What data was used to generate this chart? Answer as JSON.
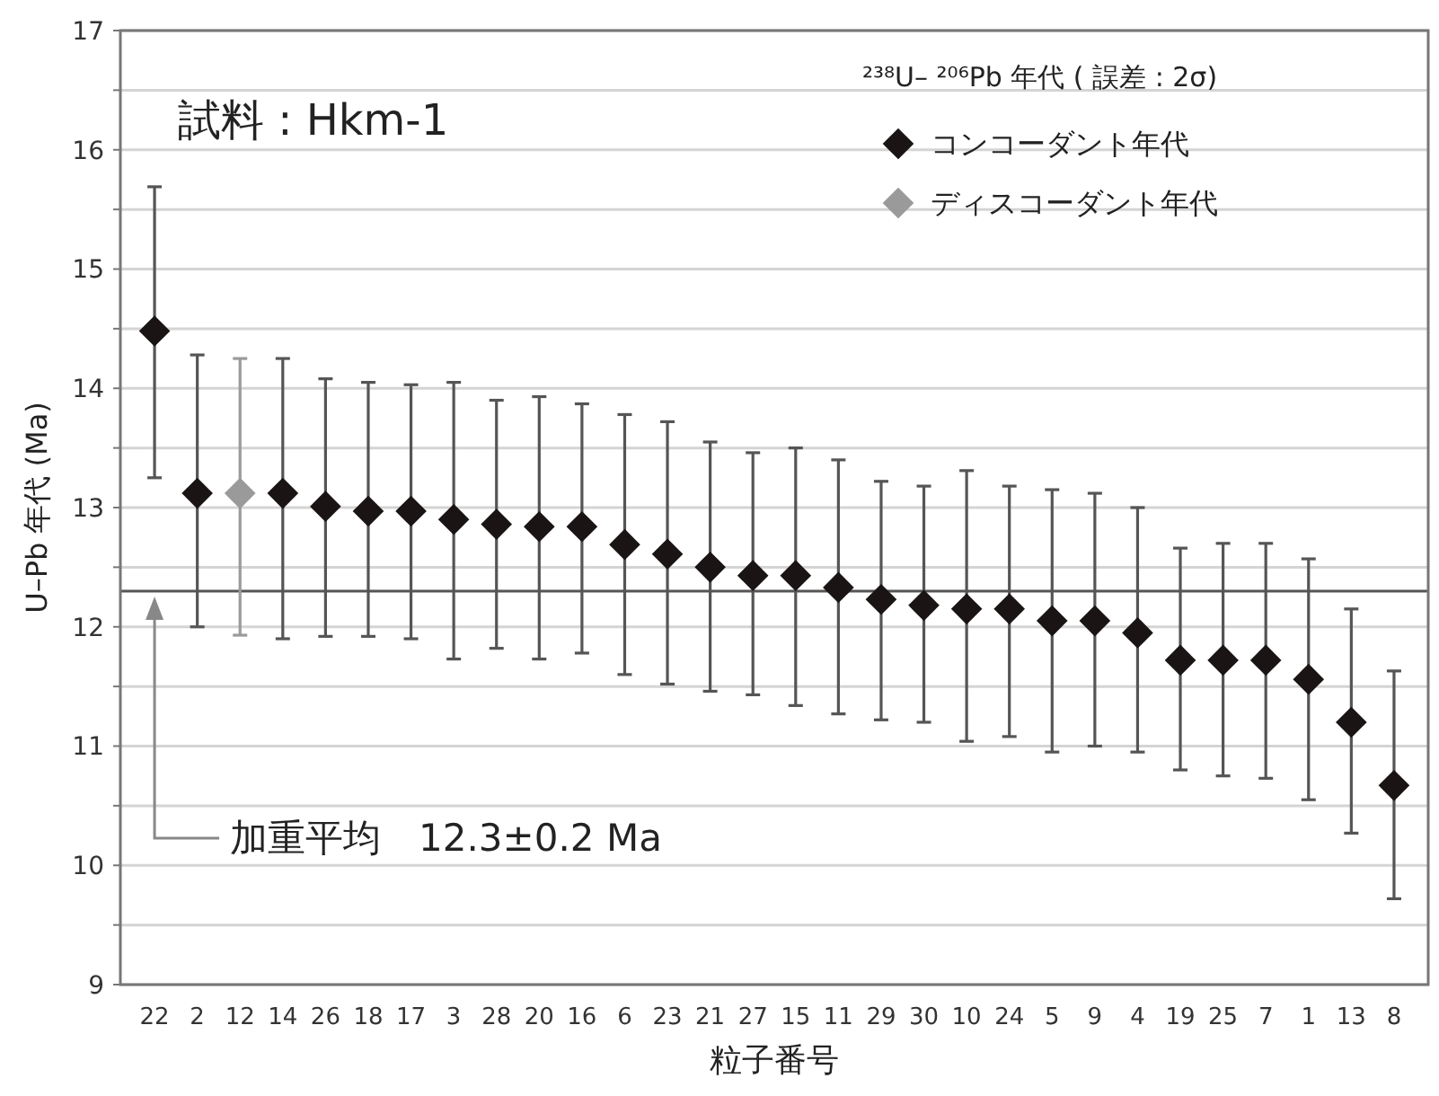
{
  "chart_data": {
    "type": "scatter",
    "xlabel": "粒子番号",
    "ylabel": "U–Pb 年代 (Ma)",
    "legend_title": "²³⁸U– ²⁰⁶Pb 年代 ( 誤差 : 2σ)",
    "categories": [
      "22",
      "2",
      "12",
      "14",
      "26",
      "18",
      "17",
      "3",
      "28",
      "20",
      "16",
      "6",
      "23",
      "21",
      "27",
      "15",
      "11",
      "29",
      "30",
      "10",
      "24",
      "5",
      "9",
      "4",
      "19",
      "25",
      "7",
      "1",
      "13",
      "8"
    ],
    "series": [
      {
        "name": "コンコーダント年代",
        "color": "#1a1414",
        "values": [
          14.48,
          13.12,
          null,
          13.12,
          13.01,
          12.97,
          12.97,
          12.9,
          12.86,
          12.84,
          12.84,
          12.69,
          12.61,
          12.5,
          12.43,
          12.43,
          12.33,
          12.23,
          12.18,
          12.15,
          12.15,
          12.05,
          12.05,
          11.95,
          11.72,
          11.72,
          11.72,
          11.56,
          11.2,
          10.67
        ],
        "errors": [
          [
            13.25,
            15.69
          ],
          [
            12.0,
            14.28
          ],
          null,
          [
            11.9,
            14.25
          ],
          [
            11.92,
            14.08
          ],
          [
            11.92,
            14.05
          ],
          [
            11.9,
            14.03
          ],
          [
            11.73,
            14.05
          ],
          [
            11.82,
            13.9
          ],
          [
            11.73,
            13.93
          ],
          [
            11.78,
            13.87
          ],
          [
            11.6,
            13.78
          ],
          [
            11.52,
            13.72
          ],
          [
            11.46,
            13.55
          ],
          [
            11.43,
            13.46
          ],
          [
            11.34,
            13.5
          ],
          [
            11.27,
            13.4
          ],
          [
            11.22,
            13.22
          ],
          [
            11.2,
            13.18
          ],
          [
            11.04,
            13.31
          ],
          [
            11.08,
            13.18
          ],
          [
            10.95,
            13.15
          ],
          [
            11.0,
            13.12
          ],
          [
            10.95,
            13.0
          ],
          [
            10.8,
            12.66
          ],
          [
            10.75,
            12.7
          ],
          [
            10.73,
            12.7
          ],
          [
            10.55,
            12.57
          ],
          [
            10.27,
            12.15
          ],
          [
            9.72,
            11.63
          ]
        ]
      },
      {
        "name": "ディスコーダント年代",
        "color": "#9a9a9a",
        "values": [
          null,
          null,
          13.12,
          null,
          null,
          null,
          null,
          null,
          null,
          null,
          null,
          null,
          null,
          null,
          null,
          null,
          null,
          null,
          null,
          null,
          null,
          null,
          null,
          null,
          null,
          null,
          null,
          null,
          null,
          null
        ],
        "errors": [
          null,
          null,
          [
            11.93,
            14.25
          ],
          null,
          null,
          null,
          null,
          null,
          null,
          null,
          null,
          null,
          null,
          null,
          null,
          null,
          null,
          null,
          null,
          null,
          null,
          null,
          null,
          null,
          null,
          null,
          null,
          null,
          null,
          null
        ]
      }
    ],
    "ylim": [
      9,
      17
    ],
    "yticks": [
      9,
      {
        "value": 9.5,
        "label": null
      },
      10,
      {
        "value": 10.5,
        "label": null
      },
      11,
      {
        "value": 11.5,
        "label": null
      },
      12,
      {
        "value": 12.5,
        "label": null
      },
      13,
      {
        "value": 13.5,
        "label": null
      },
      14,
      {
        "value": 14.5,
        "label": null
      },
      15,
      {
        "value": 15.5,
        "label": null
      },
      16,
      {
        "value": 16.5,
        "label": null
      },
      17
    ],
    "grid": "y",
    "marker": "diamond",
    "legend": "top right",
    "ref_lines": [
      {
        "axis": "y",
        "value": 12.3,
        "color": "#555555"
      }
    ],
    "annotations": [
      "試料 : Hkm-1",
      "加重平均　12.3±0.2 Ma"
    ]
  }
}
